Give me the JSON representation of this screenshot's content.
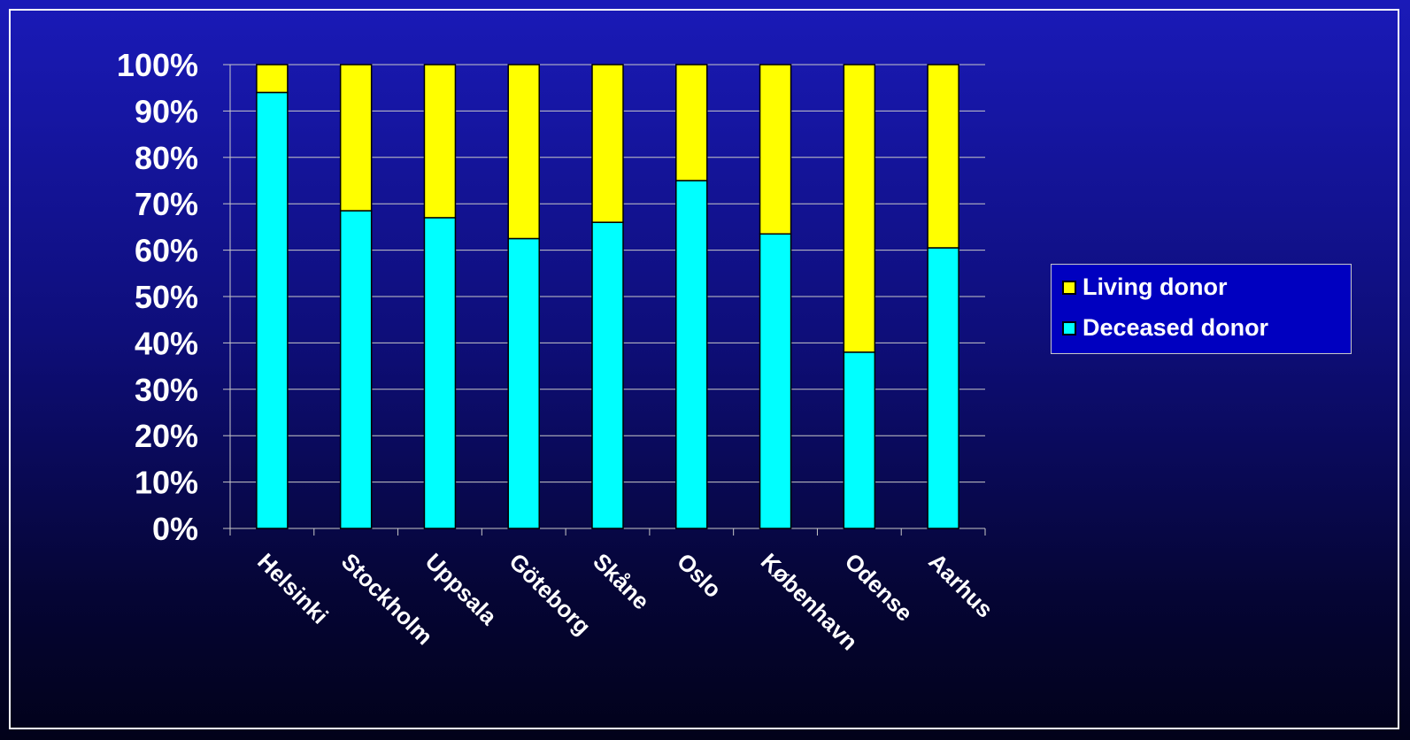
{
  "colors": {
    "living": "#ffff00",
    "deceased": "#00ffff",
    "text": "#ffffff",
    "gridline": "#c8c8c8"
  },
  "legend": {
    "items": [
      {
        "label": "Living donor",
        "color": "#ffff00"
      },
      {
        "label": "Deceased donor",
        "color": "#00ffff"
      }
    ]
  },
  "chart_data": {
    "type": "bar",
    "stacked": true,
    "percent": true,
    "title": "",
    "xlabel": "",
    "ylabel": "",
    "ylim": [
      0,
      100
    ],
    "yticks": [
      "0%",
      "10%",
      "20%",
      "30%",
      "40%",
      "50%",
      "60%",
      "70%",
      "80%",
      "90%",
      "100%"
    ],
    "categories": [
      "Helsinki",
      "Stockholm",
      "Uppsala",
      "Göteborg",
      "Skåne",
      "Oslo",
      "København",
      "Odense",
      "Aarhus"
    ],
    "series": [
      {
        "name": "Deceased donor",
        "values": [
          94,
          68.5,
          67,
          62.5,
          66,
          75,
          63.5,
          38,
          60.5
        ]
      },
      {
        "name": "Living donor",
        "values": [
          6,
          31.5,
          33,
          37.5,
          34,
          25,
          36.5,
          62,
          39.5
        ]
      }
    ],
    "grid": true,
    "legend_position": "right"
  }
}
